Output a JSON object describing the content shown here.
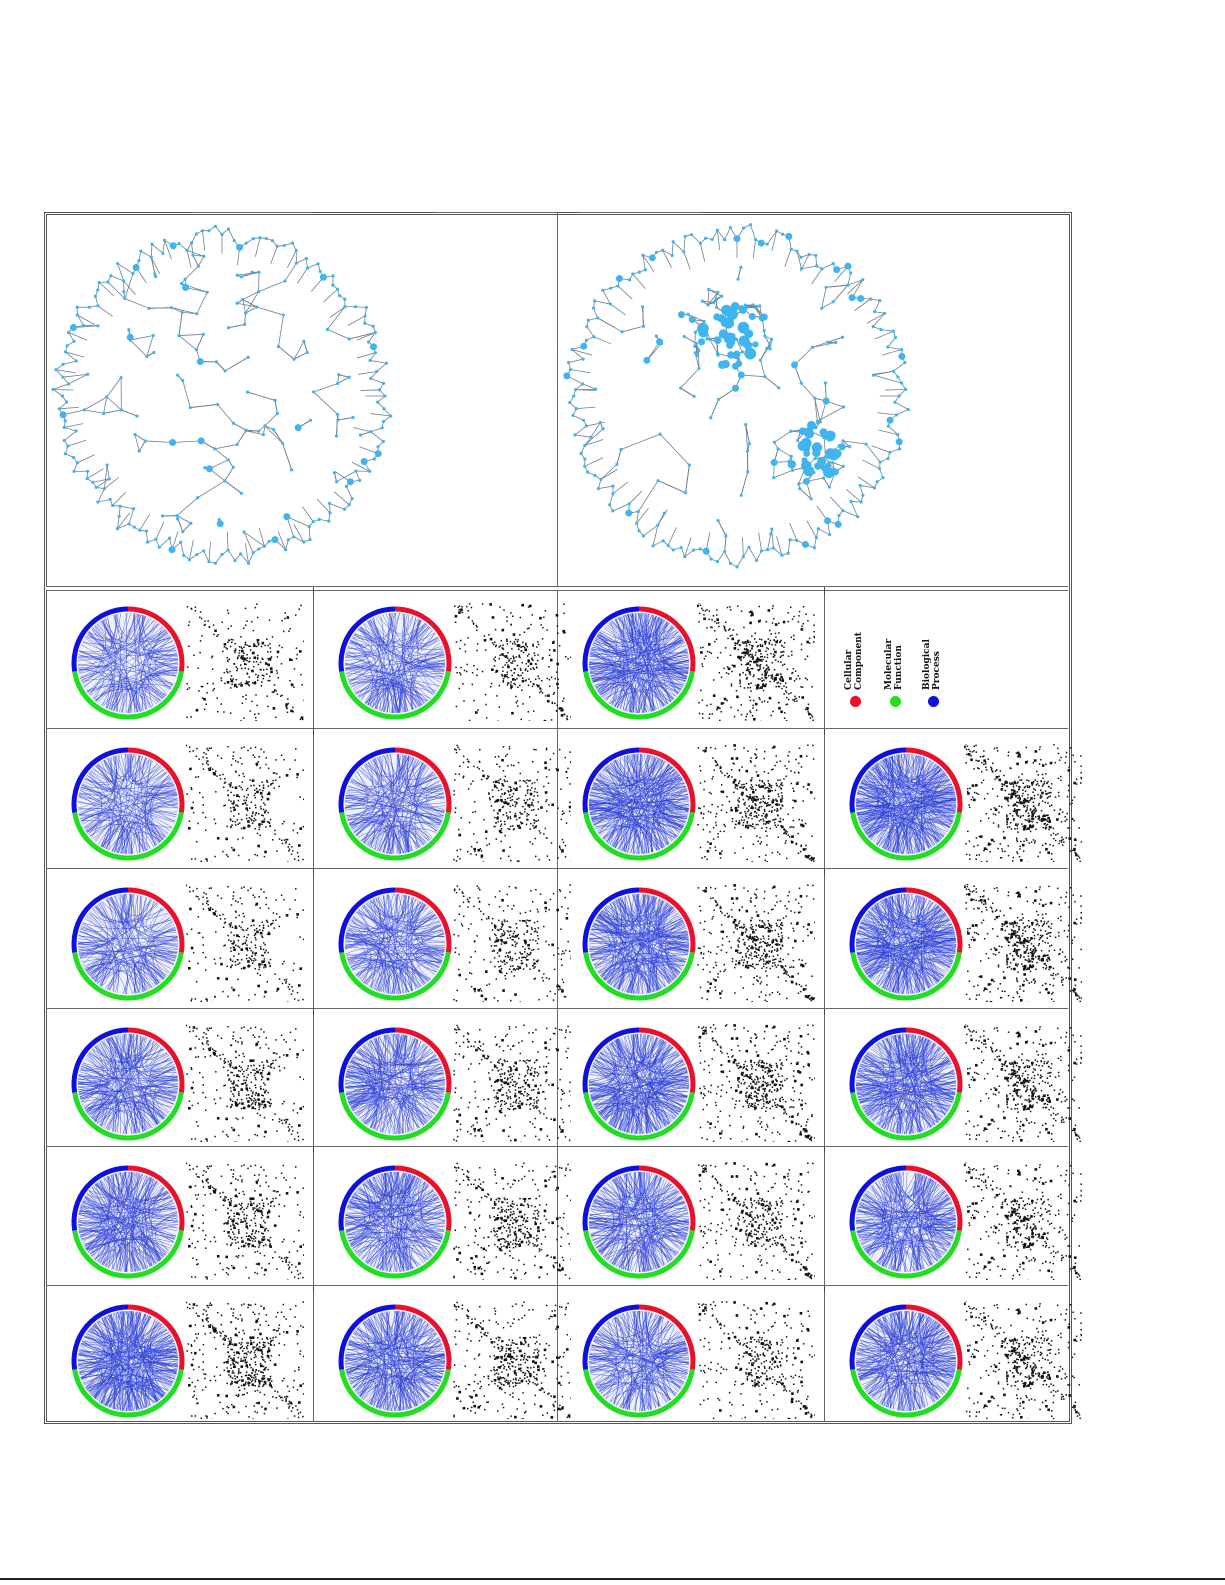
{
  "colors": {
    "cellular_component": "#e8102a",
    "molecular_function": "#22dd22",
    "biological_process": "#1010dd",
    "chord": "#2b3fd6",
    "network_edge": "#6e7f8e",
    "network_node": "#3fb4ee",
    "matrix_dot": "#111111"
  },
  "legend": {
    "items": [
      {
        "label": "Cellular\nComponent",
        "color": "#e8102a",
        "icon": "red-dot-icon"
      },
      {
        "label": "Molecular\nFunction",
        "color": "#22dd22",
        "icon": "green-dot-icon"
      },
      {
        "label": "Biological\nProcess",
        "color": "#1010dd",
        "icon": "blue-dot-icon"
      }
    ]
  },
  "networks": [
    {
      "name": "network-left",
      "hubs": "dispersed",
      "density": 0.4
    },
    {
      "name": "network-right",
      "hubs": "clustered",
      "density": 0.7
    }
  ],
  "grid": {
    "rows": 6,
    "cells_per_row": 4,
    "density": [
      [
        0.35,
        0.42,
        0.78,
        null
      ],
      [
        0.4,
        0.45,
        0.8,
        0.95
      ],
      [
        0.38,
        0.48,
        0.82,
        0.88
      ],
      [
        0.55,
        0.58,
        0.8,
        0.75
      ],
      [
        0.62,
        0.64,
        0.6,
        0.62
      ],
      [
        0.9,
        0.66,
        0.48,
        0.7
      ]
    ]
  }
}
